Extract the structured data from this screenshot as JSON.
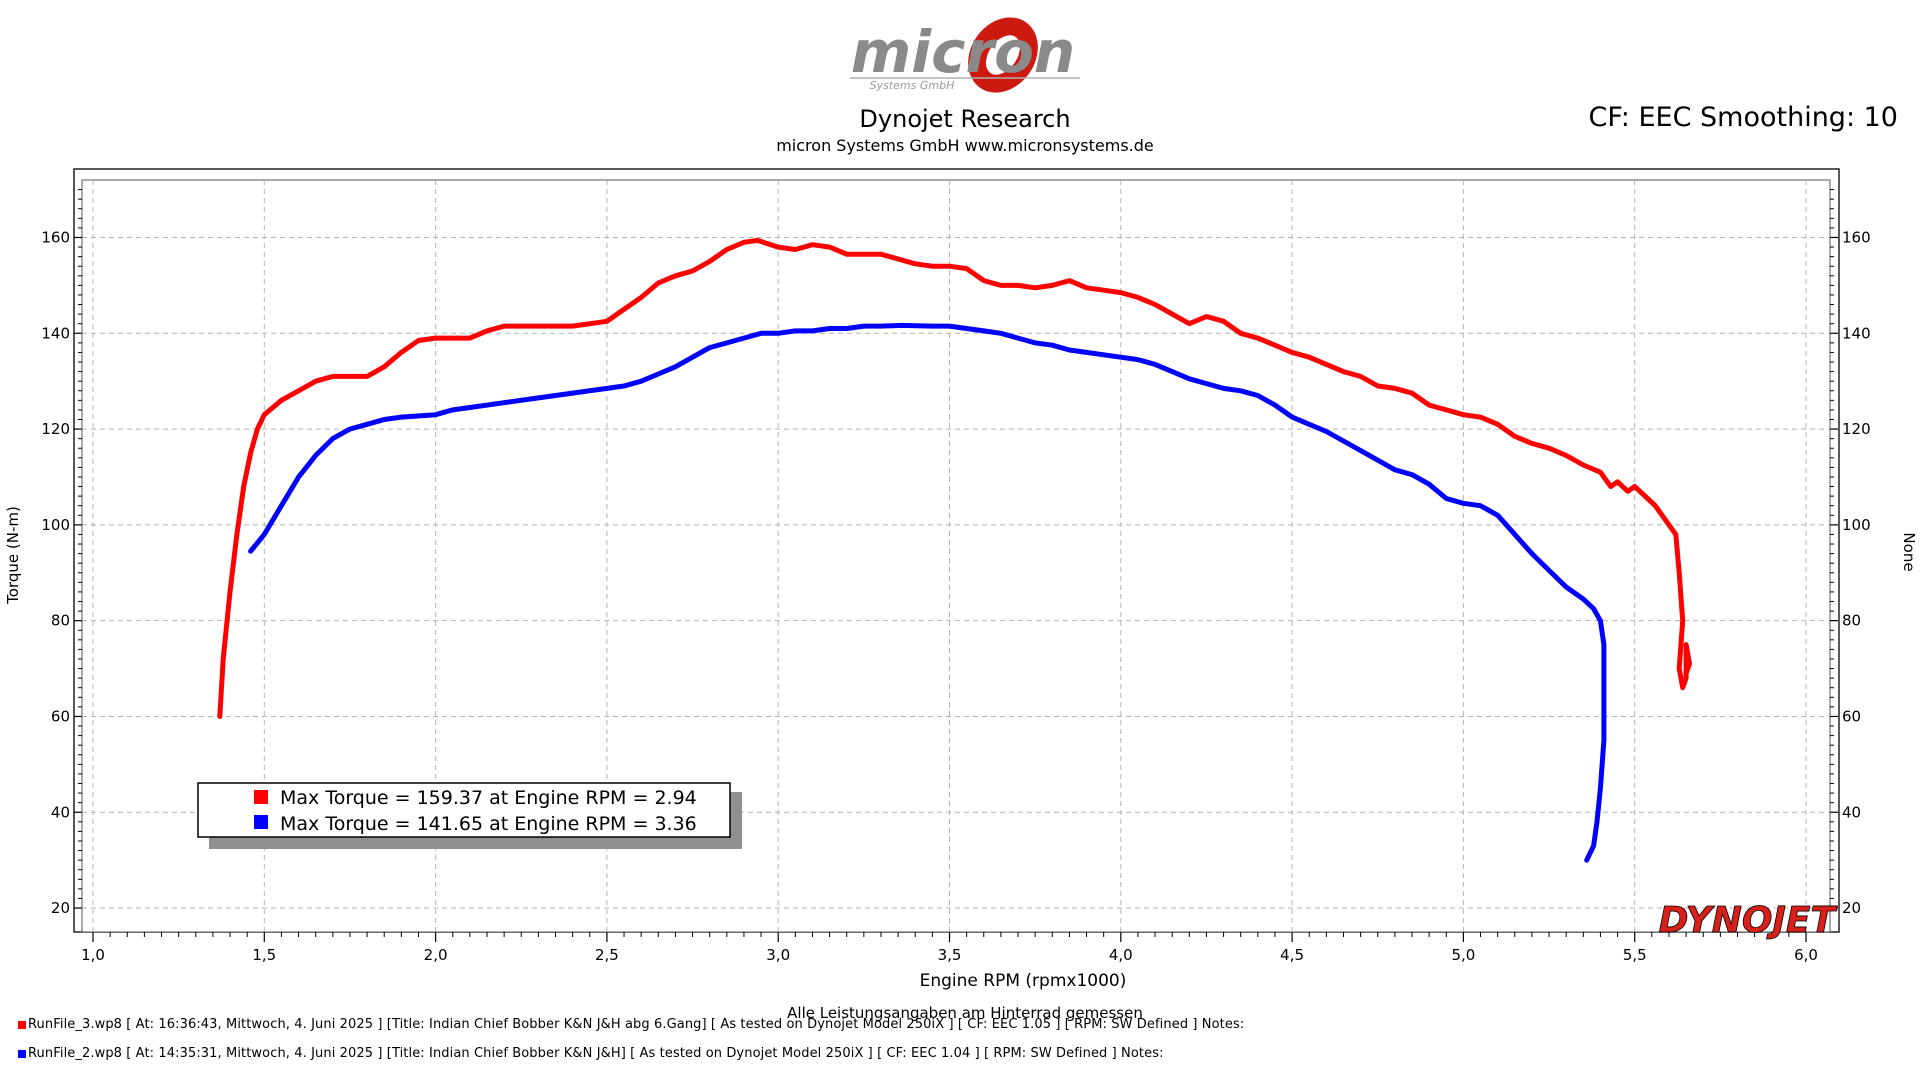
{
  "header": {
    "logo_text": "micron",
    "logo_subtext": "Systems GmbH",
    "title": "Dynojet Research",
    "subtitle": "micron Systems GmbH  www.micronsystems.de",
    "cf_text": "CF: EEC Smoothing: 10"
  },
  "brand": {
    "dynojet": "DYNOJET"
  },
  "footer": {
    "note": "Alle Leistungsangaben am Hinterrad gemessen",
    "runs": [
      {
        "text": "RunFile_3.wp8 [  At:  16:36:43,  Mittwoch,  4.  Juni  2025  ]  [Title:  Indian  Chief  Bobber  K&N  J&H  abg  6.Gang]   [  As  tested  on  Dynojet  Model  250iX  ]  [  CF:  EEC  1.05  ]  [  RPM:  SW  Defined  ]  Notes:",
        "color": "#ff0000"
      },
      {
        "text": "RunFile_2.wp8 [  At:  14:35:31,  Mittwoch,  4.  Juni  2025  ]  [Title:  Indian  Chief  Bobber  K&N  J&H]    [  As  tested  on  Dynojet  Model  250iX  ]  [  CF:  EEC  1.04  ]  [  RPM:  SW  Defined  ]  Notes:",
        "color": "#0000ff"
      }
    ]
  },
  "chart_data": {
    "type": "line",
    "xlabel": "Engine RPM (rpmx1000)",
    "ylabel": "Torque (N-m)",
    "y2label": "None",
    "xlim": [
      1.0,
      6.0
    ],
    "ylim": [
      15,
      172
    ],
    "xticks": [
      "1,0",
      "1,5",
      "2,0",
      "2,5",
      "3,0",
      "3,5",
      "4,0",
      "4,5",
      "5,0",
      "5,5",
      "6,0"
    ],
    "xtick_values": [
      1.0,
      1.5,
      2.0,
      2.5,
      3.0,
      3.5,
      4.0,
      4.5,
      5.0,
      5.5,
      6.0
    ],
    "yticks": [
      20,
      40,
      60,
      80,
      100,
      120,
      140,
      160
    ],
    "grid": true,
    "legend": [
      {
        "text": "Max Torque = 159.37 at Engine RPM = 2.94",
        "color": "#ff0000"
      },
      {
        "text": "Max Torque = 141.65 at Engine RPM = 3.36",
        "color": "#0000ff"
      }
    ],
    "series": [
      {
        "color": "#ff0000",
        "points": [
          [
            1.37,
            60
          ],
          [
            1.38,
            72
          ],
          [
            1.4,
            86
          ],
          [
            1.42,
            98
          ],
          [
            1.44,
            108
          ],
          [
            1.46,
            115
          ],
          [
            1.48,
            120
          ],
          [
            1.5,
            123
          ],
          [
            1.55,
            126
          ],
          [
            1.6,
            128
          ],
          [
            1.65,
            130
          ],
          [
            1.7,
            131
          ],
          [
            1.75,
            131
          ],
          [
            1.8,
            131
          ],
          [
            1.85,
            133
          ],
          [
            1.9,
            136
          ],
          [
            1.95,
            138.5
          ],
          [
            2.0,
            139
          ],
          [
            2.05,
            139
          ],
          [
            2.1,
            139
          ],
          [
            2.15,
            140.5
          ],
          [
            2.2,
            141.5
          ],
          [
            2.3,
            141.5
          ],
          [
            2.4,
            141.5
          ],
          [
            2.5,
            142.5
          ],
          [
            2.55,
            145
          ],
          [
            2.6,
            147.5
          ],
          [
            2.65,
            150.5
          ],
          [
            2.7,
            152
          ],
          [
            2.75,
            153
          ],
          [
            2.8,
            155
          ],
          [
            2.85,
            157.5
          ],
          [
            2.9,
            159
          ],
          [
            2.94,
            159.4
          ],
          [
            3.0,
            158
          ],
          [
            3.05,
            157.5
          ],
          [
            3.1,
            158.5
          ],
          [
            3.15,
            158
          ],
          [
            3.2,
            156.5
          ],
          [
            3.25,
            156.5
          ],
          [
            3.3,
            156.5
          ],
          [
            3.35,
            155.5
          ],
          [
            3.4,
            154.5
          ],
          [
            3.45,
            154
          ],
          [
            3.5,
            154
          ],
          [
            3.55,
            153.5
          ],
          [
            3.6,
            151
          ],
          [
            3.65,
            150
          ],
          [
            3.7,
            150
          ],
          [
            3.75,
            149.5
          ],
          [
            3.8,
            150
          ],
          [
            3.85,
            151
          ],
          [
            3.9,
            149.5
          ],
          [
            3.95,
            149
          ],
          [
            4.0,
            148.5
          ],
          [
            4.05,
            147.5
          ],
          [
            4.1,
            146
          ],
          [
            4.15,
            144
          ],
          [
            4.2,
            142
          ],
          [
            4.25,
            143.5
          ],
          [
            4.3,
            142.5
          ],
          [
            4.35,
            140
          ],
          [
            4.4,
            139
          ],
          [
            4.45,
            137.5
          ],
          [
            4.5,
            136
          ],
          [
            4.55,
            135
          ],
          [
            4.6,
            133.5
          ],
          [
            4.65,
            132
          ],
          [
            4.7,
            131
          ],
          [
            4.75,
            129
          ],
          [
            4.8,
            128.5
          ],
          [
            4.85,
            127.5
          ],
          [
            4.9,
            125
          ],
          [
            4.95,
            124
          ],
          [
            5.0,
            123
          ],
          [
            5.05,
            122.5
          ],
          [
            5.1,
            121
          ],
          [
            5.15,
            118.5
          ],
          [
            5.2,
            117
          ],
          [
            5.25,
            116
          ],
          [
            5.3,
            114.5
          ],
          [
            5.35,
            112.5
          ],
          [
            5.4,
            111
          ],
          [
            5.43,
            108
          ],
          [
            5.45,
            109
          ],
          [
            5.48,
            107
          ],
          [
            5.5,
            108
          ],
          [
            5.53,
            106
          ],
          [
            5.56,
            104
          ],
          [
            5.58,
            102
          ],
          [
            5.6,
            100
          ],
          [
            5.62,
            98
          ],
          [
            5.63,
            90
          ],
          [
            5.64,
            80
          ],
          [
            5.63,
            70
          ],
          [
            5.64,
            66
          ],
          [
            5.65,
            68
          ],
          [
            5.65,
            75
          ],
          [
            5.66,
            71
          ],
          [
            5.65,
            69
          ],
          [
            5.65,
            72
          ]
        ]
      },
      {
        "color": "#0000ff",
        "points": [
          [
            1.46,
            94.5
          ],
          [
            1.5,
            98
          ],
          [
            1.55,
            104
          ],
          [
            1.6,
            110
          ],
          [
            1.65,
            114.5
          ],
          [
            1.7,
            118
          ],
          [
            1.75,
            120
          ],
          [
            1.8,
            121
          ],
          [
            1.85,
            122
          ],
          [
            1.9,
            122.5
          ],
          [
            2.0,
            123
          ],
          [
            2.05,
            124
          ],
          [
            2.1,
            124.5
          ],
          [
            2.2,
            125.5
          ],
          [
            2.3,
            126.5
          ],
          [
            2.4,
            127.5
          ],
          [
            2.5,
            128.5
          ],
          [
            2.55,
            129
          ],
          [
            2.6,
            130
          ],
          [
            2.65,
            131.5
          ],
          [
            2.7,
            133
          ],
          [
            2.75,
            135
          ],
          [
            2.8,
            137
          ],
          [
            2.85,
            138
          ],
          [
            2.9,
            139
          ],
          [
            2.95,
            140
          ],
          [
            3.0,
            140
          ],
          [
            3.05,
            140.5
          ],
          [
            3.1,
            140.5
          ],
          [
            3.15,
            141
          ],
          [
            3.2,
            141
          ],
          [
            3.25,
            141.5
          ],
          [
            3.3,
            141.5
          ],
          [
            3.36,
            141.65
          ],
          [
            3.45,
            141.5
          ],
          [
            3.5,
            141.5
          ],
          [
            3.55,
            141
          ],
          [
            3.6,
            140.5
          ],
          [
            3.65,
            140
          ],
          [
            3.7,
            139
          ],
          [
            3.75,
            138
          ],
          [
            3.8,
            137.5
          ],
          [
            3.85,
            136.5
          ],
          [
            3.9,
            136
          ],
          [
            3.95,
            135.5
          ],
          [
            4.0,
            135
          ],
          [
            4.05,
            134.5
          ],
          [
            4.1,
            133.5
          ],
          [
            4.15,
            132
          ],
          [
            4.2,
            130.5
          ],
          [
            4.25,
            129.5
          ],
          [
            4.3,
            128.5
          ],
          [
            4.35,
            128
          ],
          [
            4.4,
            127
          ],
          [
            4.45,
            125
          ],
          [
            4.5,
            122.5
          ],
          [
            4.55,
            121
          ],
          [
            4.6,
            119.5
          ],
          [
            4.65,
            117.5
          ],
          [
            4.7,
            115.5
          ],
          [
            4.75,
            113.5
          ],
          [
            4.8,
            111.5
          ],
          [
            4.85,
            110.5
          ],
          [
            4.9,
            108.5
          ],
          [
            4.95,
            105.5
          ],
          [
            5.0,
            104.5
          ],
          [
            5.05,
            104
          ],
          [
            5.1,
            102
          ],
          [
            5.15,
            98
          ],
          [
            5.2,
            94
          ],
          [
            5.25,
            90.5
          ],
          [
            5.3,
            87
          ],
          [
            5.35,
            84.5
          ],
          [
            5.38,
            82.5
          ],
          [
            5.4,
            80
          ],
          [
            5.41,
            75
          ],
          [
            5.41,
            65
          ],
          [
            5.41,
            55
          ],
          [
            5.4,
            45
          ],
          [
            5.39,
            38
          ],
          [
            5.38,
            33
          ],
          [
            5.36,
            30
          ]
        ]
      }
    ]
  }
}
